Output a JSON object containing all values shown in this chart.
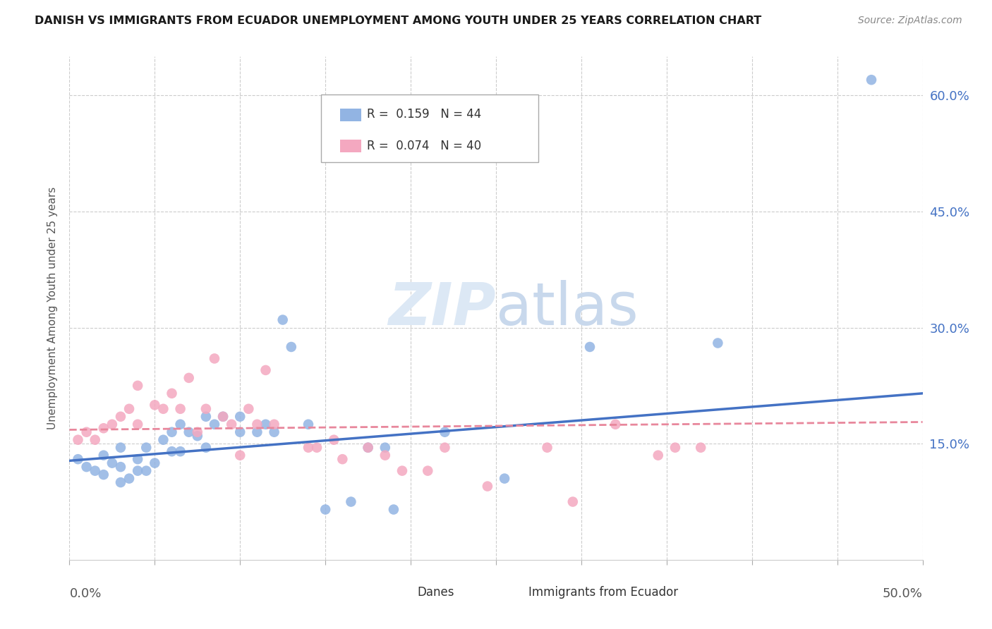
{
  "title": "DANISH VS IMMIGRANTS FROM ECUADOR UNEMPLOYMENT AMONG YOUTH UNDER 25 YEARS CORRELATION CHART",
  "source": "Source: ZipAtlas.com",
  "ylabel": "Unemployment Among Youth under 25 years",
  "xmin": 0.0,
  "xmax": 0.5,
  "ymin": 0.0,
  "ymax": 0.65,
  "right_yticks": [
    0.15,
    0.3,
    0.45,
    0.6
  ],
  "right_yticklabels": [
    "15.0%",
    "30.0%",
    "45.0%",
    "60.0%"
  ],
  "danes_color": "#92b4e3",
  "ecuador_color": "#f4a8c0",
  "danes_line_color": "#4472c4",
  "ecuador_line_color": "#e8879c",
  "watermark_zip": "ZIP",
  "watermark_atlas": "atlas",
  "danes_scatter_x": [
    0.005,
    0.01,
    0.015,
    0.02,
    0.02,
    0.025,
    0.03,
    0.03,
    0.03,
    0.035,
    0.04,
    0.04,
    0.045,
    0.045,
    0.05,
    0.055,
    0.06,
    0.06,
    0.065,
    0.065,
    0.07,
    0.075,
    0.08,
    0.08,
    0.085,
    0.09,
    0.1,
    0.1,
    0.11,
    0.115,
    0.12,
    0.125,
    0.13,
    0.14,
    0.15,
    0.165,
    0.175,
    0.185,
    0.19,
    0.22,
    0.255,
    0.305,
    0.38,
    0.47
  ],
  "danes_scatter_y": [
    0.13,
    0.12,
    0.115,
    0.11,
    0.135,
    0.125,
    0.1,
    0.12,
    0.145,
    0.105,
    0.115,
    0.13,
    0.115,
    0.145,
    0.125,
    0.155,
    0.14,
    0.165,
    0.14,
    0.175,
    0.165,
    0.16,
    0.145,
    0.185,
    0.175,
    0.185,
    0.185,
    0.165,
    0.165,
    0.175,
    0.165,
    0.31,
    0.275,
    0.175,
    0.065,
    0.075,
    0.145,
    0.145,
    0.065,
    0.165,
    0.105,
    0.275,
    0.28,
    0.62
  ],
  "ecuador_scatter_x": [
    0.005,
    0.01,
    0.015,
    0.02,
    0.025,
    0.03,
    0.035,
    0.04,
    0.04,
    0.05,
    0.055,
    0.06,
    0.065,
    0.07,
    0.075,
    0.08,
    0.085,
    0.09,
    0.095,
    0.1,
    0.105,
    0.11,
    0.115,
    0.12,
    0.14,
    0.145,
    0.155,
    0.16,
    0.175,
    0.185,
    0.195,
    0.21,
    0.22,
    0.245,
    0.28,
    0.295,
    0.32,
    0.345,
    0.355,
    0.37
  ],
  "ecuador_scatter_y": [
    0.155,
    0.165,
    0.155,
    0.17,
    0.175,
    0.185,
    0.195,
    0.175,
    0.225,
    0.2,
    0.195,
    0.215,
    0.195,
    0.235,
    0.165,
    0.195,
    0.26,
    0.185,
    0.175,
    0.135,
    0.195,
    0.175,
    0.245,
    0.175,
    0.145,
    0.145,
    0.155,
    0.13,
    0.145,
    0.135,
    0.115,
    0.115,
    0.145,
    0.095,
    0.145,
    0.075,
    0.175,
    0.135,
    0.145,
    0.145
  ],
  "danes_line_x0": 0.0,
  "danes_line_x1": 0.5,
  "danes_line_y0": 0.128,
  "danes_line_y1": 0.215,
  "ecuador_line_x0": 0.0,
  "ecuador_line_x1": 0.5,
  "ecuador_line_y0": 0.168,
  "ecuador_line_y1": 0.178
}
